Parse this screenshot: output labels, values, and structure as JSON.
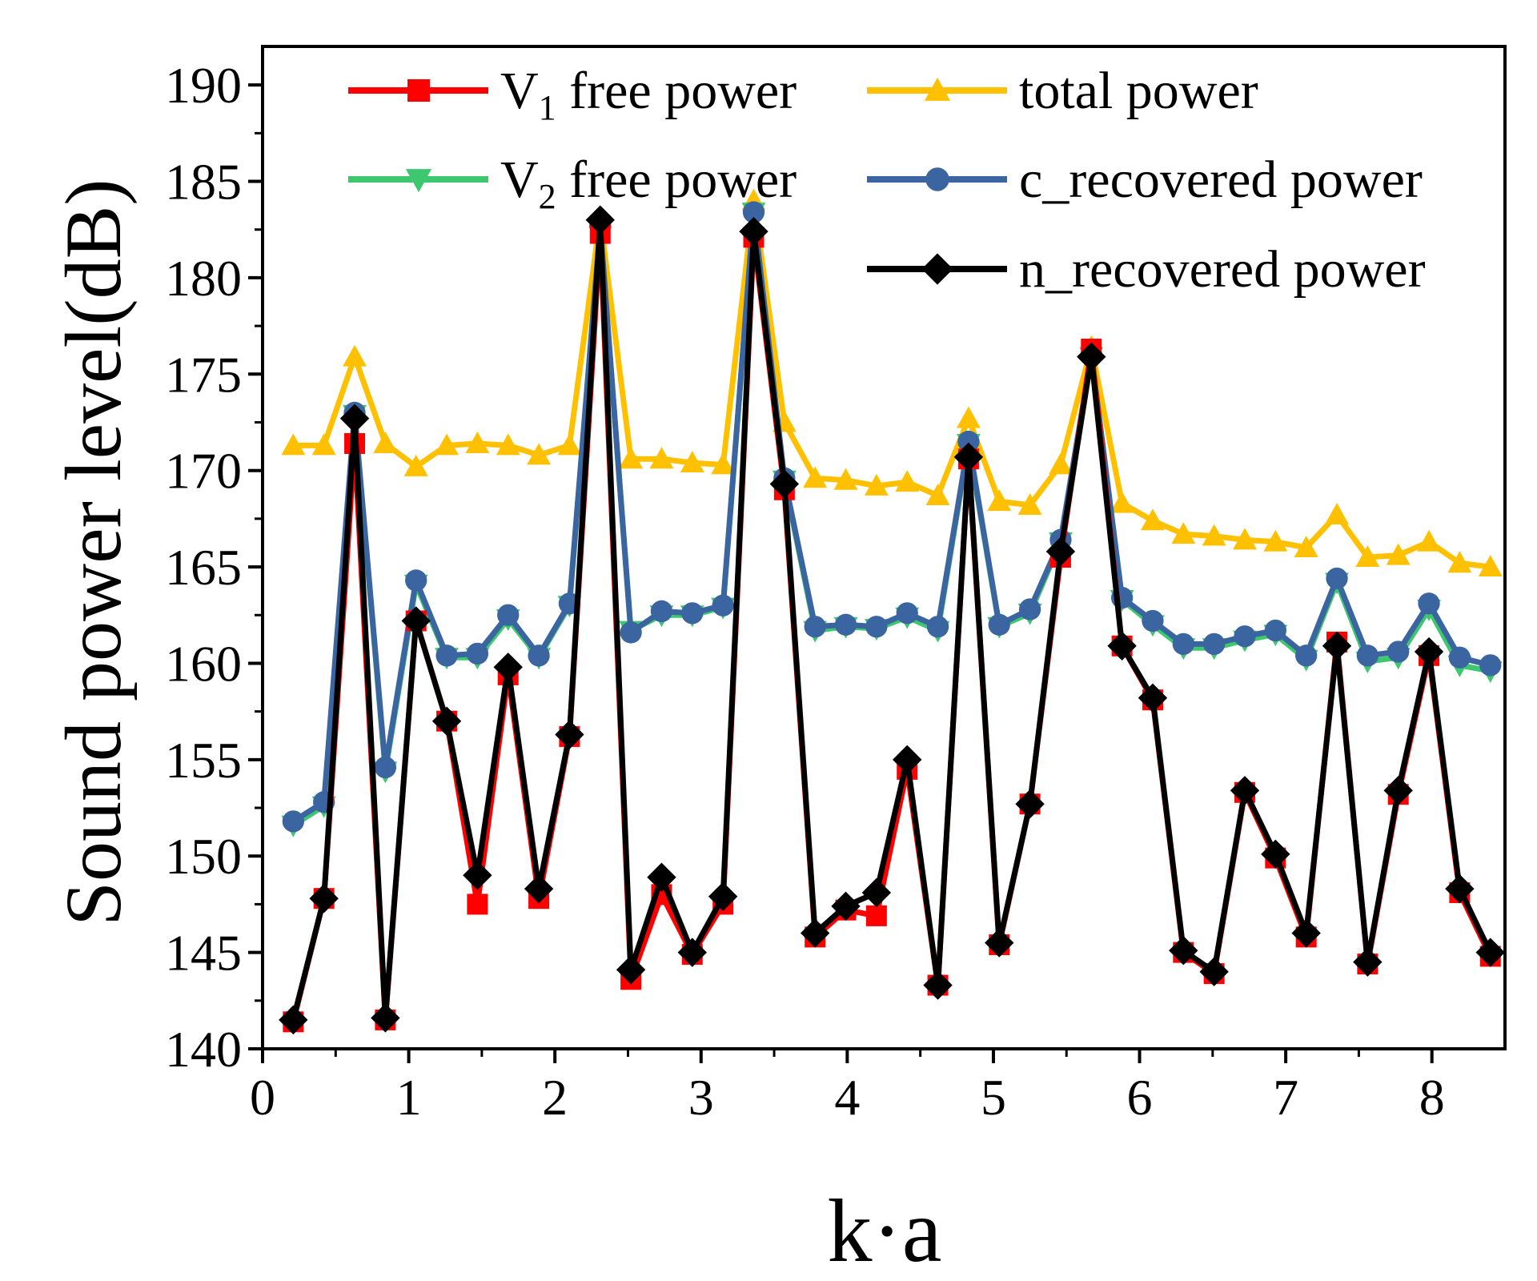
{
  "chart_data": {
    "type": "line",
    "xlabel": "k·a",
    "ylabel": "Sound power level(dB)",
    "xlim": [
      0,
      8.5
    ],
    "ylim": [
      140,
      192
    ],
    "xticks": [
      0,
      1,
      2,
      3,
      4,
      5,
      6,
      7,
      8
    ],
    "yticks": [
      140,
      145,
      150,
      155,
      160,
      165,
      170,
      175,
      180,
      185,
      190
    ],
    "x": [
      0.21,
      0.42,
      0.63,
      0.84,
      1.05,
      1.26,
      1.47,
      1.68,
      1.89,
      2.1,
      2.31,
      2.52,
      2.73,
      2.94,
      3.15,
      3.36,
      3.57,
      3.78,
      3.99,
      4.2,
      4.41,
      4.62,
      4.83,
      5.04,
      5.25,
      5.46,
      5.67,
      5.88,
      6.09,
      6.3,
      6.51,
      6.72,
      6.93,
      7.14,
      7.35,
      7.56,
      7.77,
      7.98,
      8.19,
      8.4
    ],
    "legend_position": "top",
    "series": [
      {
        "name": "V",
        "sub": "1",
        "suffix": " free power",
        "color": "#ff0000",
        "marker": "square",
        "values": [
          141.4,
          147.8,
          171.4,
          141.5,
          162.2,
          157.0,
          147.5,
          159.4,
          147.8,
          156.2,
          182.3,
          143.6,
          148.0,
          144.9,
          147.5,
          182.1,
          169.0,
          145.8,
          147.2,
          146.9,
          154.5,
          143.3,
          170.6,
          145.4,
          152.7,
          165.5,
          176.3,
          160.9,
          158.1,
          145.0,
          143.9,
          153.3,
          149.9,
          145.8,
          161.1,
          144.4,
          153.2,
          160.4,
          148.1,
          144.8
        ]
      },
      {
        "name": "total  power",
        "sub": "",
        "suffix": "",
        "color": "#ffc000",
        "marker": "triangle-up",
        "values": [
          171.3,
          171.3,
          175.9,
          171.4,
          170.2,
          171.3,
          171.4,
          171.3,
          170.8,
          171.3,
          183.1,
          170.6,
          170.6,
          170.4,
          170.3,
          184.0,
          172.5,
          169.6,
          169.5,
          169.2,
          169.4,
          168.7,
          172.7,
          168.4,
          168.2,
          170.3,
          176.4,
          168.3,
          167.4,
          166.7,
          166.6,
          166.4,
          166.3,
          166.0,
          167.7,
          165.5,
          165.6,
          166.3,
          165.2,
          165.0
        ]
      },
      {
        "name": "V",
        "sub": "2",
        "suffix": " free power",
        "color": "#3dc870",
        "marker": "triangle-down",
        "values": [
          151.6,
          152.6,
          172.9,
          154.4,
          164.1,
          160.3,
          160.3,
          162.3,
          160.3,
          163.0,
          182.6,
          161.7,
          162.5,
          162.5,
          162.9,
          183.4,
          169.5,
          161.7,
          161.9,
          161.8,
          162.4,
          161.7,
          171.4,
          161.9,
          162.6,
          166.3,
          175.9,
          163.3,
          162.0,
          160.8,
          160.8,
          161.2,
          161.5,
          160.2,
          164.2,
          160.1,
          160.3,
          162.8,
          159.9,
          159.6
        ]
      },
      {
        "name": "c_recovered power",
        "sub": "",
        "suffix": "",
        "color": "#3a65a0",
        "marker": "circle",
        "values": [
          151.8,
          152.8,
          173.0,
          154.6,
          164.3,
          160.4,
          160.5,
          162.5,
          160.4,
          163.1,
          182.7,
          161.6,
          162.7,
          162.6,
          163.0,
          183.4,
          169.6,
          161.9,
          162.0,
          161.9,
          162.6,
          161.9,
          171.5,
          162.0,
          162.8,
          166.4,
          176.0,
          163.4,
          162.2,
          161.0,
          161.0,
          161.4,
          161.7,
          160.4,
          164.4,
          160.4,
          160.6,
          163.1,
          160.3,
          159.9
        ]
      },
      {
        "name": "n_recovered power",
        "sub": "",
        "suffix": "",
        "color": "#000000",
        "marker": "diamond",
        "values": [
          141.5,
          147.8,
          172.7,
          141.6,
          162.2,
          157.0,
          149.0,
          159.8,
          148.3,
          156.3,
          183.0,
          144.1,
          148.9,
          145.0,
          147.9,
          182.4,
          169.3,
          146.0,
          147.4,
          148.1,
          155.0,
          143.3,
          170.7,
          145.5,
          152.7,
          165.8,
          175.9,
          160.9,
          158.2,
          145.1,
          144.0,
          153.4,
          150.1,
          146.0,
          160.9,
          144.5,
          153.4,
          160.6,
          148.3,
          145.0
        ]
      }
    ]
  }
}
